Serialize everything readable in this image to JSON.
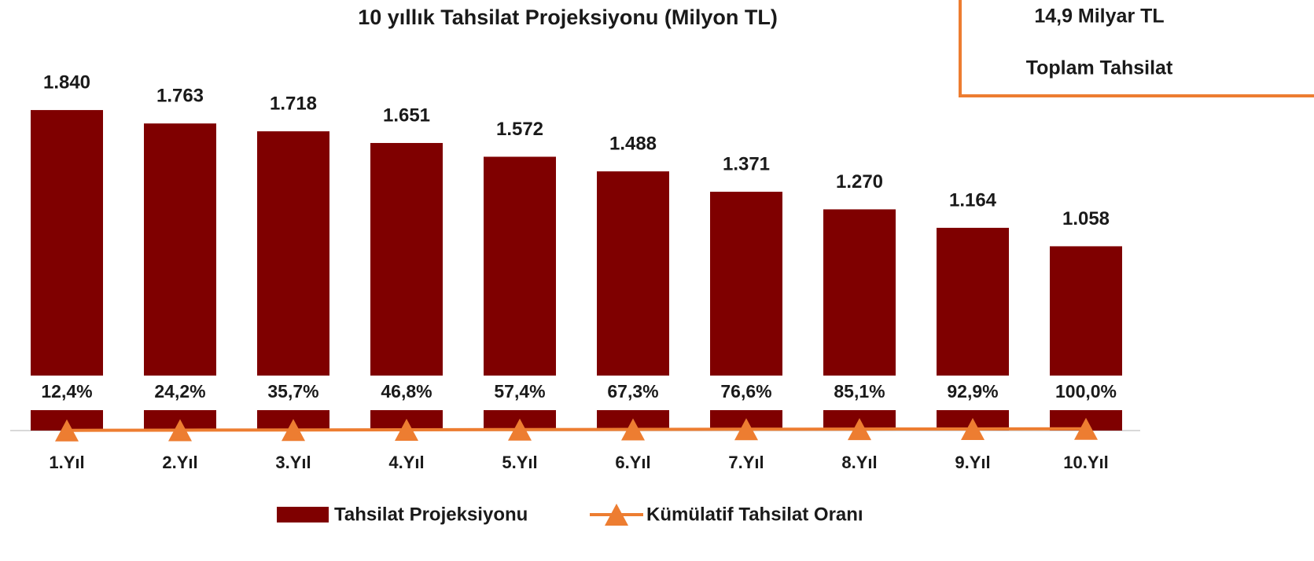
{
  "chart_data": {
    "type": "bar",
    "title": "10 yıllık Tahsilat Projeksiyonu  (Milyon TL)",
    "annotations": [
      "14,9 Milyar TL",
      "Toplam Tahsilat"
    ],
    "categories": [
      "1.Yıl",
      "2.Yıl",
      "3.Yıl",
      "4.Yıl",
      "5.Yıl",
      "6.Yıl",
      "7.Yıl",
      "8.Yıl",
      "9.Yıl",
      "10.Yıl"
    ],
    "series": [
      {
        "name": "Tahsilat Projeksiyonu",
        "color": "#7f0000",
        "type": "bar",
        "values": [
          1840,
          1763,
          1718,
          1651,
          1572,
          1488,
          1371,
          1270,
          1164,
          1058
        ],
        "value_labels": [
          "1.840",
          "1.763",
          "1.718",
          "1.651",
          "1.572",
          "1.488",
          "1.371",
          "1.270",
          "1.164",
          "1.058"
        ]
      },
      {
        "name": "Kümülatif Tahsilat Oranı",
        "color": "#ed7d31",
        "type": "line",
        "axis": "y2",
        "values": [
          12.4,
          24.2,
          35.7,
          46.8,
          57.4,
          67.3,
          76.6,
          85.1,
          92.9,
          100.0
        ],
        "value_labels": [
          "12,4%",
          "24,2%",
          "35,7%",
          "46,8%",
          "57,4%",
          "67,3%",
          "76,6%",
          "85,1%",
          "92,9%",
          "100,0%"
        ]
      }
    ],
    "ylim": [
      0,
      2000
    ],
    "y2lim": [
      0,
      20000
    ]
  }
}
